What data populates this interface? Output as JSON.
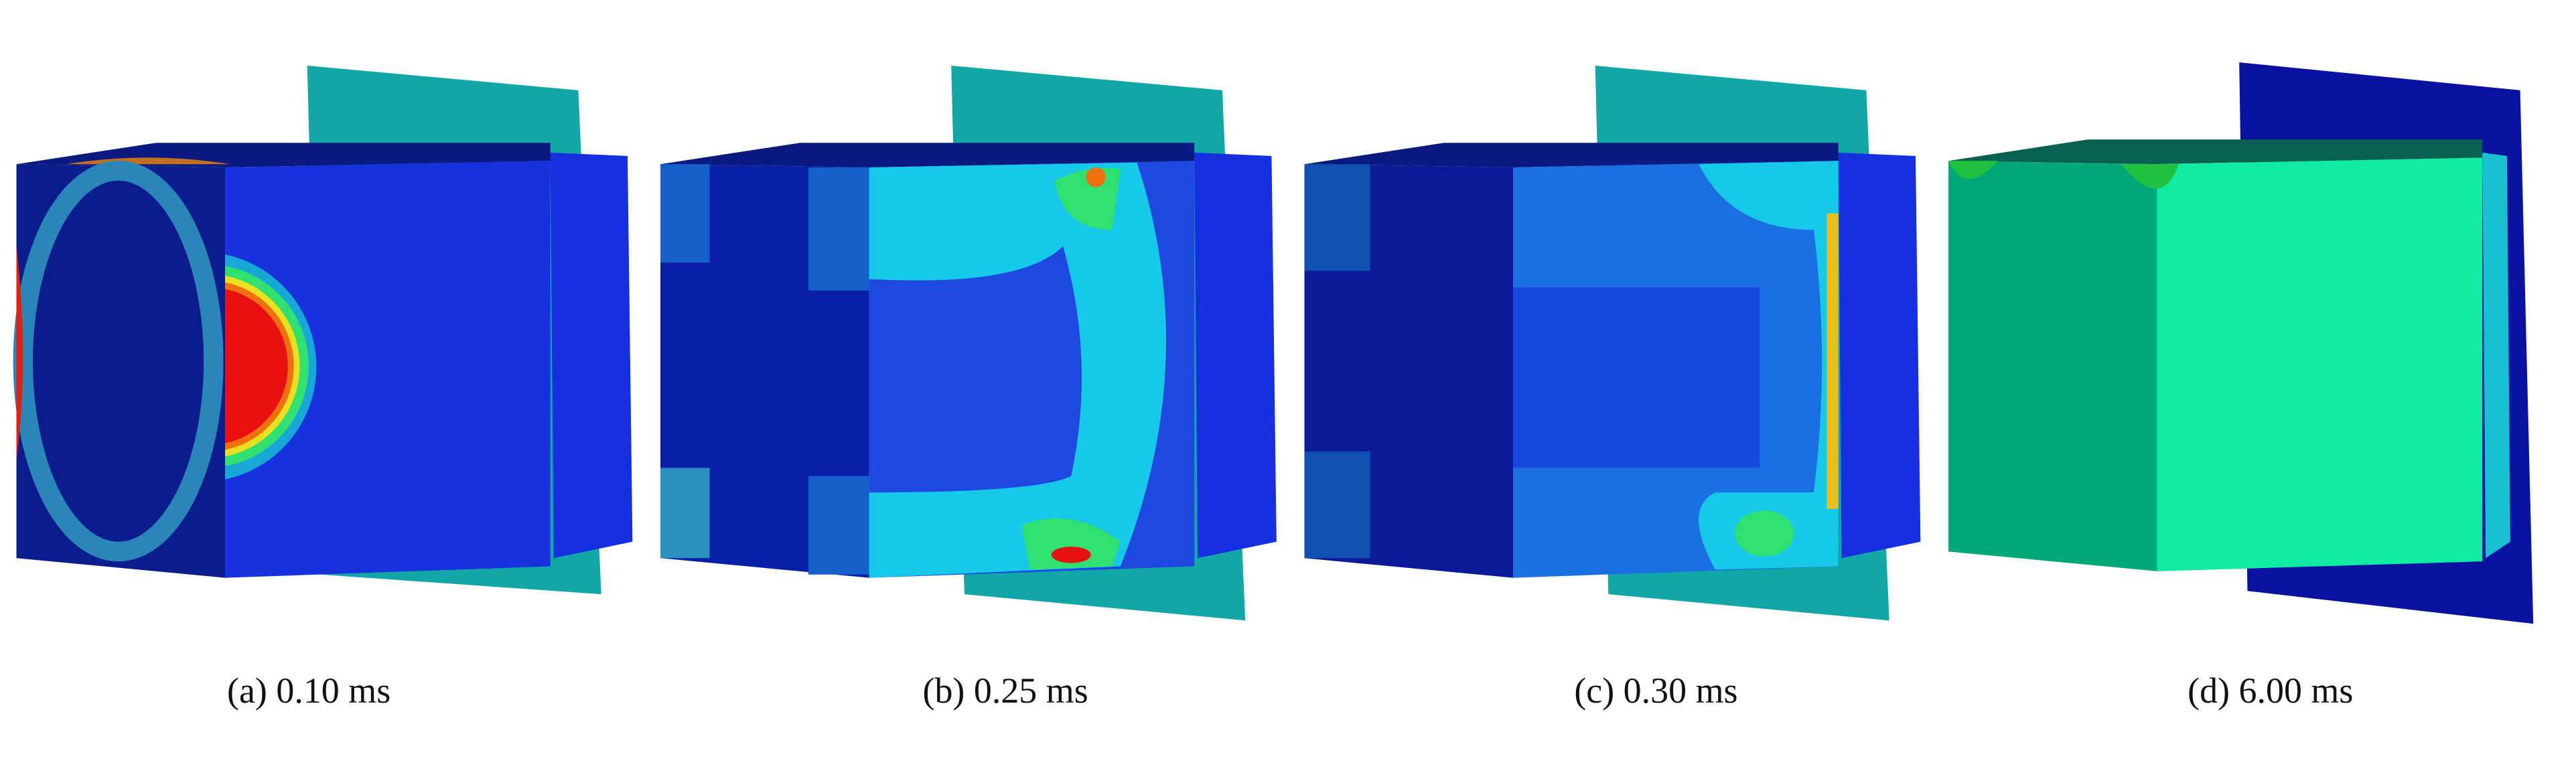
{
  "panels": [
    {
      "caption": "(a) 0.10 ms"
    },
    {
      "caption": "(b) 0.25 ms"
    },
    {
      "caption": "(c) 0.30 ms"
    },
    {
      "caption": "(d) 6.00 ms"
    }
  ]
}
